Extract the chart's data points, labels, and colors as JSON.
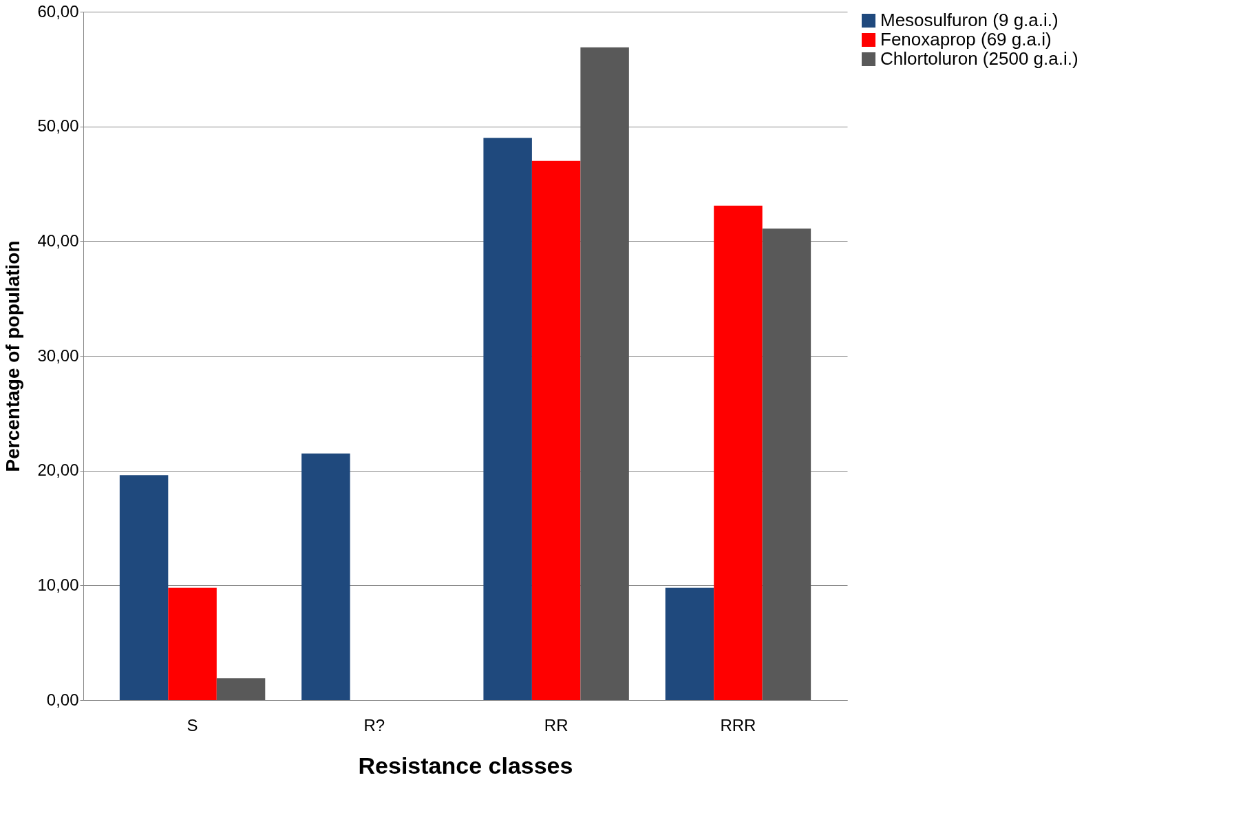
{
  "chart_data": {
    "type": "bar",
    "xlabel": "Resistance classes",
    "ylabel": "Percentage of population",
    "categories": [
      "S",
      "R?",
      "RR",
      "RRR"
    ],
    "series": [
      {
        "name": "Mesosulfuron (9 g.a.i.)",
        "color": "#1f497d",
        "values": [
          19.6,
          21.5,
          49.0,
          9.8
        ]
      },
      {
        "name": "Fenoxaprop (69 g.a.i)",
        "color": "#ff0000",
        "values": [
          9.8,
          0,
          47.0,
          43.1
        ]
      },
      {
        "name": "Chlortoluron (2500 g.a.i.)",
        "color": "#595959",
        "values": [
          1.9,
          0,
          56.9,
          41.1
        ]
      }
    ],
    "ylim": [
      0,
      60
    ],
    "yticks": [
      {
        "value": 0,
        "label": "0,00"
      },
      {
        "value": 10,
        "label": "10,00"
      },
      {
        "value": 20,
        "label": "20,00"
      },
      {
        "value": 30,
        "label": "30,00"
      },
      {
        "value": 40,
        "label": "40,00"
      },
      {
        "value": 50,
        "label": "50,00"
      },
      {
        "value": 60,
        "label": "60,00"
      }
    ],
    "grid": "y",
    "legend": "right"
  }
}
